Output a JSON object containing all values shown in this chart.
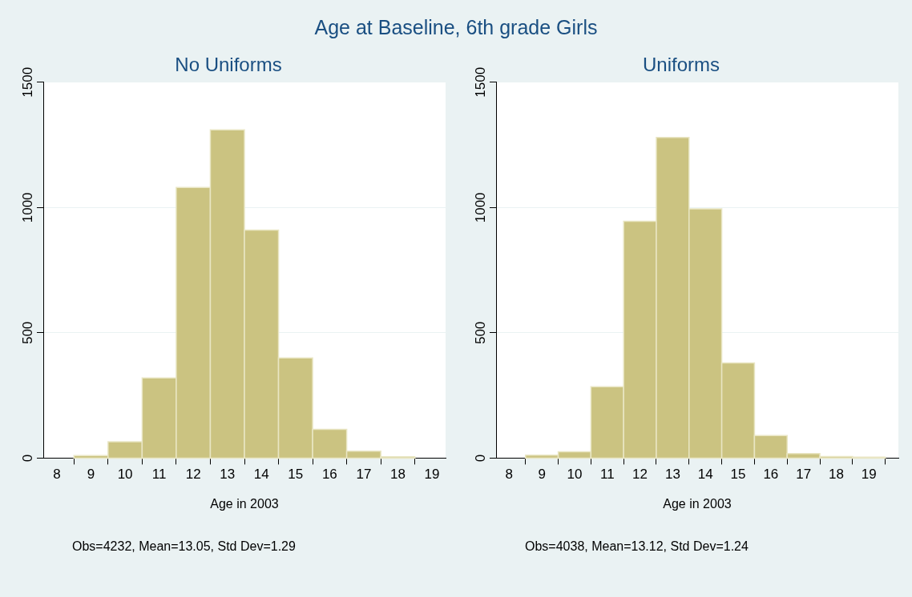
{
  "chart_data": [
    {
      "type": "histogram",
      "title": "Age at Baseline, 6th grade Girls",
      "subtitle": "No Uniforms",
      "xlabel": "Age in 2003",
      "annotations": [
        "Obs=4232, Mean=13.05, Std Dev=1.29"
      ],
      "color": "#cbc381",
      "bins": [
        8.5,
        9.5,
        10.5,
        11.5,
        12.5,
        13.5,
        14.5,
        15.5,
        16.5,
        17.5,
        18.5
      ],
      "values": [
        10,
        65,
        320,
        1080,
        1310,
        910,
        400,
        115,
        28,
        5
      ],
      "xlim": [
        7.6,
        19.4
      ],
      "xticks": [
        8,
        9,
        10,
        11,
        12,
        13,
        14,
        15,
        16,
        17,
        18,
        19
      ],
      "ylim": [
        0,
        1500
      ],
      "yticks": [
        0,
        500,
        1000,
        1500
      ],
      "grid": "y",
      "legend": false
    },
    {
      "type": "histogram",
      "subtitle": "Uniforms",
      "xlabel": "Age in 2003",
      "annotations": [
        "Obs=4038, Mean=13.12, Std Dev=1.24"
      ],
      "color": "#cbc381",
      "bins": [
        8.5,
        9.5,
        10.5,
        11.5,
        12.5,
        13.5,
        14.5,
        15.5,
        16.5,
        17.5,
        18.5,
        19.5
      ],
      "values": [
        12,
        25,
        285,
        945,
        1280,
        995,
        380,
        90,
        18,
        6,
        4
      ],
      "xlim": [
        7.6,
        19.9
      ],
      "xticks": [
        8,
        9,
        10,
        11,
        12,
        13,
        14,
        15,
        16,
        17,
        18,
        19
      ],
      "ylim": [
        0,
        1500
      ],
      "yticks": [
        0,
        500,
        1000,
        1500
      ],
      "grid": "y",
      "legend": false
    }
  ]
}
